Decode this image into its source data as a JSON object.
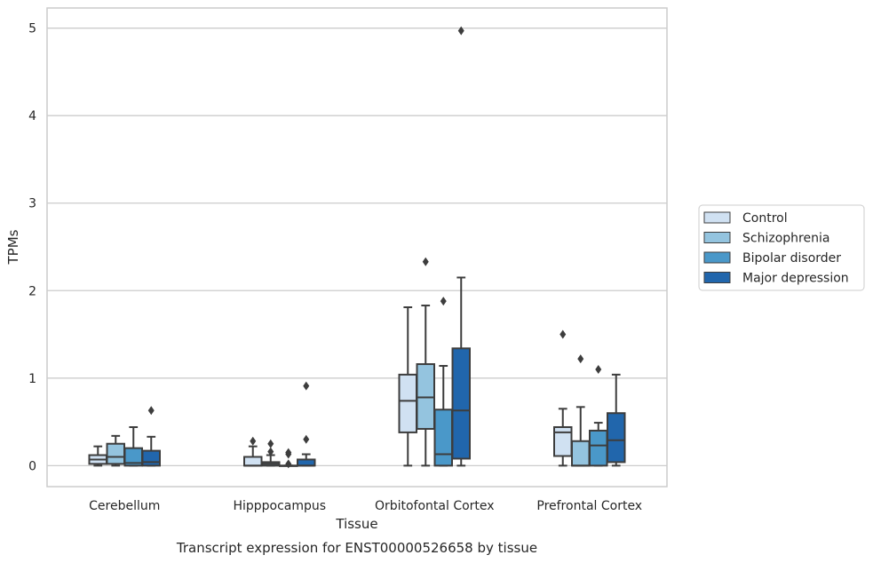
{
  "caption": "Transcript expression for ENST00000526658 by tissue",
  "chart_data": {
    "type": "box",
    "xlabel": "Tissue",
    "ylabel": "TPMs",
    "ylim": [
      -0.24,
      5.23
    ],
    "yticks": [
      0,
      1,
      2,
      3,
      4,
      5
    ],
    "grid": "horizontal",
    "legend_position": "right",
    "categories": [
      "Cerebellum",
      "Hipppocampus",
      "Orbitofontal Cortex",
      "Prefrontal Cortex"
    ],
    "series": [
      {
        "name": "Control",
        "color": "#d0e1f2",
        "boxes": [
          {
            "whislo": 0.0,
            "q1": 0.02,
            "med": 0.07,
            "q3": 0.12,
            "whishi": 0.22,
            "fliers": []
          },
          {
            "whislo": 0.0,
            "q1": 0.0,
            "med": 0.0,
            "q3": 0.1,
            "whishi": 0.22,
            "fliers": [
              0.28
            ]
          },
          {
            "whislo": 0.0,
            "q1": 0.38,
            "med": 0.74,
            "q3": 1.04,
            "whishi": 1.81,
            "fliers": []
          },
          {
            "whislo": 0.0,
            "q1": 0.11,
            "med": 0.38,
            "q3": 0.44,
            "whishi": 0.65,
            "fliers": [
              1.5
            ]
          }
        ]
      },
      {
        "name": "Schizophrenia",
        "color": "#94c4df",
        "boxes": [
          {
            "whislo": 0.0,
            "q1": 0.02,
            "med": 0.1,
            "q3": 0.25,
            "whishi": 0.34,
            "fliers": []
          },
          {
            "whislo": 0.0,
            "q1": 0.0,
            "med": 0.02,
            "q3": 0.04,
            "whishi": 0.12,
            "fliers": [
              0.16,
              0.25
            ]
          },
          {
            "whislo": 0.0,
            "q1": 0.42,
            "med": 0.78,
            "q3": 1.16,
            "whishi": 1.83,
            "fliers": [
              2.33
            ]
          },
          {
            "whislo": 0.0,
            "q1": 0.0,
            "med": 0.0,
            "q3": 0.28,
            "whishi": 0.67,
            "fliers": [
              1.22
            ]
          }
        ]
      },
      {
        "name": "Bipolar disorder",
        "color": "#4a98c9",
        "boxes": [
          {
            "whislo": 0.0,
            "q1": 0.0,
            "med": 0.03,
            "q3": 0.2,
            "whishi": 0.44,
            "fliers": []
          },
          {
            "whislo": 0.0,
            "q1": 0.0,
            "med": 0.0,
            "q3": 0.0,
            "whishi": 0.0,
            "fliers": [
              0.02,
              0.13,
              0.15
            ]
          },
          {
            "whislo": 0.0,
            "q1": 0.0,
            "med": 0.13,
            "q3": 0.64,
            "whishi": 1.14,
            "fliers": [
              1.88
            ]
          },
          {
            "whislo": 0.0,
            "q1": 0.0,
            "med": 0.23,
            "q3": 0.4,
            "whishi": 0.49,
            "fliers": [
              1.1
            ]
          }
        ]
      },
      {
        "name": "Major depression",
        "color": "#2166ac",
        "boxes": [
          {
            "whislo": 0.0,
            "q1": 0.0,
            "med": 0.04,
            "q3": 0.17,
            "whishi": 0.33,
            "fliers": [
              0.63
            ]
          },
          {
            "whislo": 0.0,
            "q1": 0.0,
            "med": 0.0,
            "q3": 0.07,
            "whishi": 0.13,
            "fliers": [
              0.3,
              0.91
            ]
          },
          {
            "whislo": 0.0,
            "q1": 0.08,
            "med": 0.63,
            "q3": 1.34,
            "whishi": 2.15,
            "fliers": [
              4.97
            ]
          },
          {
            "whislo": 0.0,
            "q1": 0.04,
            "med": 0.29,
            "q3": 0.6,
            "whishi": 1.04,
            "fliers": []
          }
        ]
      }
    ]
  }
}
